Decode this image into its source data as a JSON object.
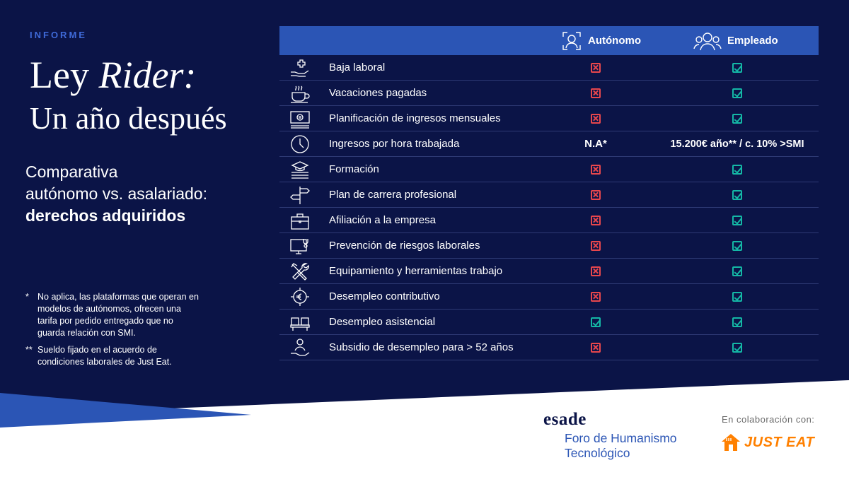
{
  "header": {
    "kicker": "INFORME",
    "title_part1": "Ley",
    "title_part2": "Rider:",
    "title_line2": "Un año después",
    "subtitle_line1": "Comparativa",
    "subtitle_line2": "autónomo vs. asalariado:",
    "subtitle_bold": "derechos adquiridos"
  },
  "notes": [
    {
      "mark": "*",
      "text": "No aplica, las plataformas que operan en modelos de autónomos, ofrecen una tarifa por pedido entregado que no guarda relación con SMI."
    },
    {
      "mark": "**",
      "text": "Sueldo fijado en el acuerdo de condiciones laborales de Just Eat."
    }
  ],
  "table": {
    "col1_label": "Autónomo",
    "col2_label": "Empleado",
    "col1_icon": "freelancer-person-icon",
    "col2_icon": "employees-group-icon",
    "rows": [
      {
        "label": "Baja laboral",
        "icon": "medical-hand-icon",
        "autonomo": "no",
        "empleado": "yes"
      },
      {
        "label": "Vacaciones pagadas",
        "icon": "coffee-cup-icon",
        "autonomo": "no",
        "empleado": "yes"
      },
      {
        "label": "Planificación de ingresos mensuales",
        "icon": "euro-banknote-icon",
        "autonomo": "no",
        "empleado": "yes"
      },
      {
        "label": "Ingresos por hora trabajada",
        "icon": "clock-icon",
        "autonomo": "N.A*",
        "empleado": "15.200€ año** / c. 10% >SMI"
      },
      {
        "label": "Formación",
        "icon": "graduation-books-icon",
        "autonomo": "no",
        "empleado": "yes"
      },
      {
        "label": "Plan de carrera profesional",
        "icon": "signpost-icon",
        "autonomo": "no",
        "empleado": "yes"
      },
      {
        "label": "Afiliación a la empresa",
        "icon": "briefcase-icon",
        "autonomo": "no",
        "empleado": "yes"
      },
      {
        "label": "Prevención de riesgos laborales",
        "icon": "monitor-health-icon",
        "autonomo": "no",
        "empleado": "yes"
      },
      {
        "label": "Equipamiento y herramientas trabajo",
        "icon": "tools-icon",
        "autonomo": "no",
        "empleado": "yes"
      },
      {
        "label": "Desempleo contributivo",
        "icon": "euro-cycle-icon",
        "autonomo": "no",
        "empleado": "yes"
      },
      {
        "label": "Desempleo asistencial",
        "icon": "waiting-seats-icon",
        "autonomo": "yes",
        "empleado": "yes"
      },
      {
        "label": "Subsidio de desempleo para > 52 años",
        "icon": "hand-person-icon",
        "autonomo": "no",
        "empleado": "yes"
      }
    ]
  },
  "footer": {
    "esade": "esade",
    "foro_line1": "Foro de Humanismo",
    "foro_line2": "Tecnológico",
    "colab": "En colaboración con:",
    "justeat": "JUST EAT"
  },
  "colors": {
    "background": "#0b1447",
    "header_blue": "#2b55b5",
    "no_red": "#e8474d",
    "yes_teal": "#14b8a6",
    "justeat_orange": "#ff8000"
  }
}
